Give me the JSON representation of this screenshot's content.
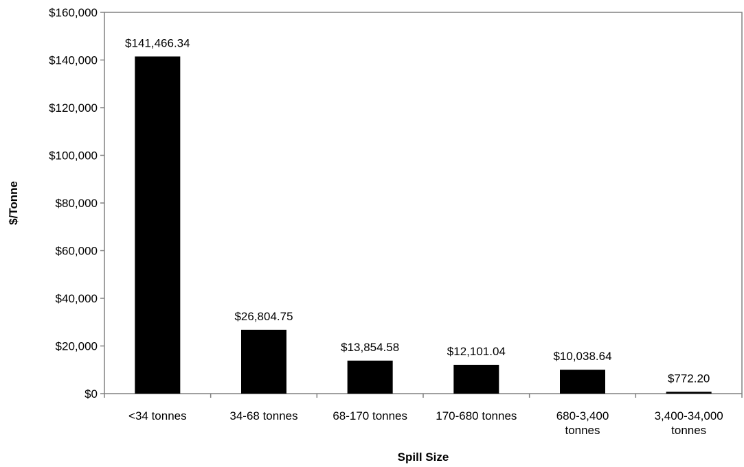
{
  "chart_data": {
    "type": "bar",
    "title": "",
    "xlabel": "Spill Size",
    "ylabel": "$/Tonne",
    "categories": [
      "<34 tonnes",
      "34-68 tonnes",
      "68-170 tonnes",
      "170-680 tonnes",
      "680-3,400 tonnes",
      "3,400-34,000 tonnes"
    ],
    "category_lines": [
      [
        "<34 tonnes"
      ],
      [
        "34-68 tonnes"
      ],
      [
        "68-170 tonnes"
      ],
      [
        "170-680 tonnes"
      ],
      [
        "680-3,400",
        "tonnes"
      ],
      [
        "3,400-34,000",
        "tonnes"
      ]
    ],
    "values": [
      141466.34,
      26804.75,
      13854.58,
      12101.04,
      10038.64,
      772.2
    ],
    "data_labels": [
      "$141,466.34",
      "$26,804.75",
      "$13,854.58",
      "$12,101.04",
      "$10,038.64",
      "$772.20"
    ],
    "ylim": [
      0,
      160000
    ],
    "yticks": [
      0,
      20000,
      40000,
      60000,
      80000,
      100000,
      120000,
      140000,
      160000
    ],
    "ytick_labels": [
      "$0",
      "$20,000",
      "$40,000",
      "$60,000",
      "$80,000",
      "$100,000",
      "$120,000",
      "$140,000",
      "$160,000"
    ],
    "grid": false,
    "legend": "none",
    "bar_color": "#000000",
    "axis_color": "#808080"
  }
}
